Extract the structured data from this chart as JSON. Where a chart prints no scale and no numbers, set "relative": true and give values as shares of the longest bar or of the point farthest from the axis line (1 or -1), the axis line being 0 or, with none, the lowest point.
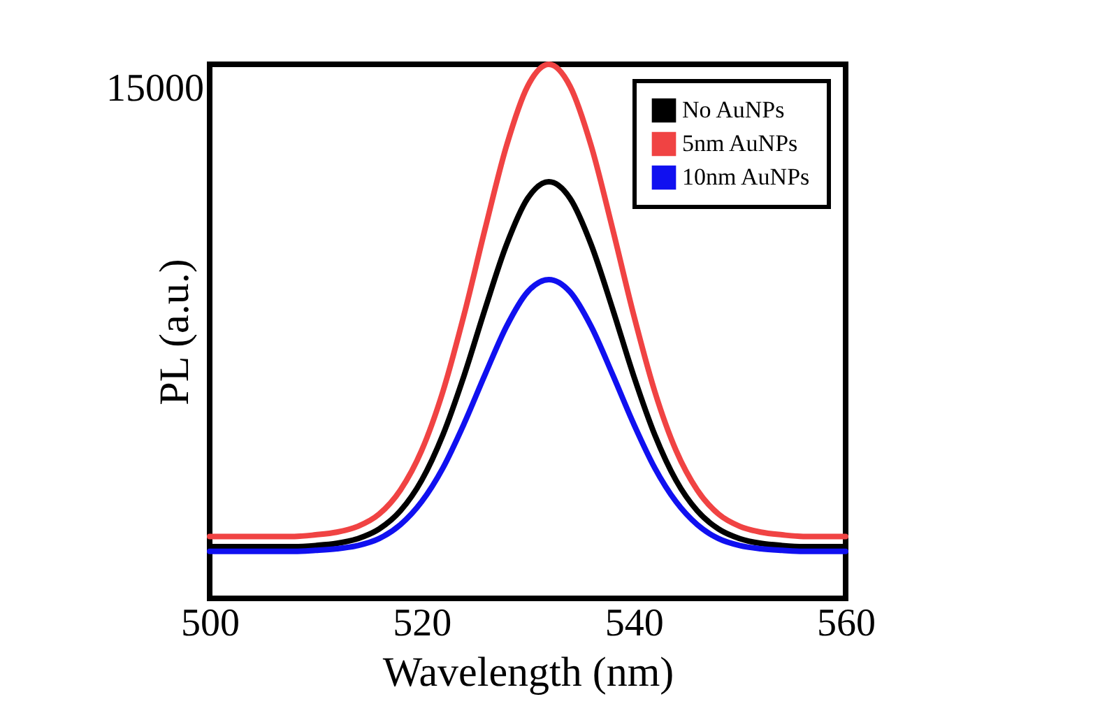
{
  "chart_data": {
    "type": "line",
    "xlabel": "Wavelength (nm)",
    "ylabel": "PL (a.u.)",
    "relative": true,
    "xlim": [
      500,
      560
    ],
    "xticks": [
      500,
      520,
      540,
      560
    ],
    "grid": false,
    "legend": "top right",
    "marker": "none",
    "line_style": "solid",
    "annotations": [
      "15000"
    ],
    "x": [
      500,
      502,
      504,
      506,
      508,
      510,
      512,
      514,
      516,
      518,
      520,
      522,
      524,
      526,
      528,
      530,
      532,
      534,
      536,
      538,
      540,
      542,
      544,
      546,
      548,
      550,
      552,
      554,
      556,
      558,
      560
    ],
    "series": [
      {
        "name": "No AuNPs",
        "color": "#000000",
        "values": [
          0.097,
          0.097,
          0.097,
          0.097,
          0.097,
          0.099,
          0.103,
          0.112,
          0.13,
          0.164,
          0.221,
          0.306,
          0.417,
          0.543,
          0.662,
          0.749,
          0.78,
          0.749,
          0.662,
          0.543,
          0.417,
          0.306,
          0.221,
          0.164,
          0.13,
          0.112,
          0.103,
          0.099,
          0.097,
          0.097,
          0.097
        ]
      },
      {
        "name": "5nm AuNPs",
        "color": "#f04343",
        "values": [
          0.116,
          0.116,
          0.116,
          0.116,
          0.116,
          0.119,
          0.124,
          0.135,
          0.158,
          0.203,
          0.277,
          0.387,
          0.531,
          0.693,
          0.847,
          0.959,
          1,
          0.959,
          0.847,
          0.693,
          0.531,
          0.387,
          0.277,
          0.203,
          0.158,
          0.135,
          0.124,
          0.119,
          0.116,
          0.116,
          0.116
        ]
      },
      {
        "name": "10nm AuNPs",
        "color": "#1010f0",
        "values": [
          0.088,
          0.088,
          0.088,
          0.088,
          0.088,
          0.09,
          0.093,
          0.099,
          0.112,
          0.138,
          0.181,
          0.244,
          0.327,
          0.42,
          0.509,
          0.574,
          0.597,
          0.574,
          0.509,
          0.42,
          0.327,
          0.244,
          0.181,
          0.138,
          0.112,
          0.099,
          0.093,
          0.09,
          0.088,
          0.088,
          0.088
        ]
      }
    ]
  }
}
